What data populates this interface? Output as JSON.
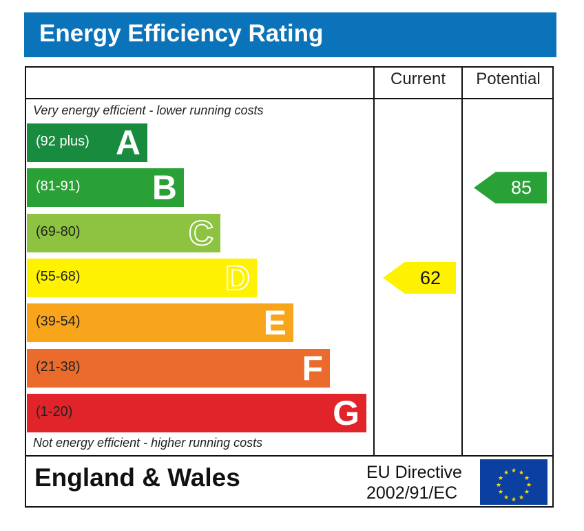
{
  "header": {
    "title": "Energy Efficiency Rating"
  },
  "columns": {
    "current": "Current",
    "potential": "Potential"
  },
  "captions": {
    "top": "Very energy efficient - lower running costs",
    "bottom": "Not energy efficient - higher running costs"
  },
  "footer": {
    "region": "England & Wales",
    "directive_line1": "EU Directive",
    "directive_line2": "2002/91/EC"
  },
  "chart_data": {
    "type": "bar",
    "title": "Energy Efficiency Rating",
    "categories": [
      "A",
      "B",
      "C",
      "D",
      "E",
      "F",
      "G"
    ],
    "bands": [
      {
        "letter": "A",
        "range": "(92 plus)",
        "color": "#198b3f",
        "letter_color": "#ffffff",
        "range_color": "#ffffff"
      },
      {
        "letter": "B",
        "range": "(81-91)",
        "color": "#2aa137",
        "letter_color": "#ffffff",
        "range_color": "#ffffff"
      },
      {
        "letter": "C",
        "range": "(69-80)",
        "color": "#8dc340",
        "letter_color": "#ffffff",
        "range_color": "#222222"
      },
      {
        "letter": "D",
        "range": "(55-68)",
        "color": "#fef200",
        "letter_color": "#ffffff",
        "range_color": "#222222"
      },
      {
        "letter": "E",
        "range": "(39-54)",
        "color": "#f8a51c",
        "letter_color": "#ffffff",
        "range_color": "#222222"
      },
      {
        "letter": "F",
        "range": "(21-38)",
        "color": "#eb6b2d",
        "letter_color": "#ffffff",
        "range_color": "#222222"
      },
      {
        "letter": "G",
        "range": "(1-20)",
        "color": "#e1242a",
        "letter_color": "#ffffff",
        "range_color": "#222222"
      }
    ],
    "series": [
      {
        "name": "Current",
        "value": 62,
        "band": "D",
        "color": "#fef200",
        "text_color": "#111111"
      },
      {
        "name": "Potential",
        "value": 85,
        "band": "B",
        "color": "#2aa137",
        "text_color": "#ffffff"
      }
    ]
  }
}
